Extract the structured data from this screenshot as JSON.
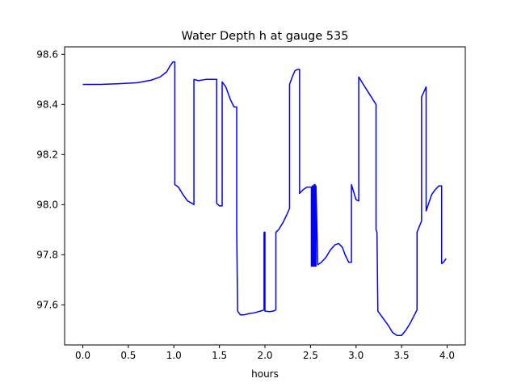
{
  "chart_data": {
    "type": "line",
    "title": "Water Depth h at gauge 535",
    "xlabel": "hours",
    "ylabel": "",
    "xlim": [
      -0.2,
      4.2
    ],
    "ylim": [
      97.44,
      98.63
    ],
    "xticks": [
      {
        "value": 0.0,
        "label": "0.0"
      },
      {
        "value": 0.5,
        "label": "0.5"
      },
      {
        "value": 1.0,
        "label": "1.0"
      },
      {
        "value": 1.5,
        "label": "1.5"
      },
      {
        "value": 2.0,
        "label": "2.0"
      },
      {
        "value": 2.5,
        "label": "2.5"
      },
      {
        "value": 3.0,
        "label": "3.0"
      },
      {
        "value": 3.5,
        "label": "3.5"
      },
      {
        "value": 4.0,
        "label": "4.0"
      }
    ],
    "yticks": [
      {
        "value": 97.6,
        "label": "97.6"
      },
      {
        "value": 97.8,
        "label": "97.8"
      },
      {
        "value": 98.0,
        "label": "98.0"
      },
      {
        "value": 98.2,
        "label": "98.2"
      },
      {
        "value": 98.4,
        "label": "98.4"
      },
      {
        "value": 98.6,
        "label": "98.6"
      }
    ],
    "grid": false,
    "series": [
      {
        "color": "#0000ff",
        "x": [
          0.0,
          0.2,
          0.4,
          0.6,
          0.75,
          0.85,
          0.92,
          0.96,
          0.99,
          1.01,
          1.01,
          1.05,
          1.1,
          1.15,
          1.2,
          1.22,
          1.22,
          1.27,
          1.35,
          1.44,
          1.47,
          1.47,
          1.5,
          1.53,
          1.53,
          1.57,
          1.62,
          1.66,
          1.69,
          1.69,
          1.7,
          1.73,
          1.77,
          1.82,
          1.88,
          1.95,
          1.99,
          1.99,
          2.0,
          2.0,
          2.05,
          2.09,
          2.12,
          2.12,
          2.15,
          2.2,
          2.24,
          2.27,
          2.27,
          2.3,
          2.33,
          2.36,
          2.38,
          2.38,
          2.42,
          2.46,
          2.5,
          2.51,
          2.51,
          2.52,
          2.52,
          2.53,
          2.53,
          2.54,
          2.54,
          2.55,
          2.55,
          2.56,
          2.56,
          2.58,
          2.62,
          2.67,
          2.72,
          2.77,
          2.81,
          2.85,
          2.88,
          2.92,
          2.95,
          2.95,
          3.0,
          3.03,
          3.03,
          3.08,
          3.15,
          3.22,
          3.22,
          3.23,
          3.24,
          3.3,
          3.36,
          3.4,
          3.45,
          3.5,
          3.55,
          3.6,
          3.67,
          3.67,
          3.72,
          3.72,
          3.77,
          3.77,
          3.83,
          3.87,
          3.91,
          3.94,
          3.94,
          3.96,
          3.99
        ],
        "y": [
          98.48,
          98.48,
          98.483,
          98.487,
          98.497,
          98.51,
          98.53,
          98.555,
          98.57,
          98.57,
          98.08,
          98.07,
          98.04,
          98.015,
          98.005,
          98.0,
          98.5,
          98.495,
          98.5,
          98.5,
          98.5,
          98.005,
          97.995,
          97.995,
          98.49,
          98.47,
          98.42,
          98.39,
          98.39,
          97.89,
          97.575,
          97.56,
          97.56,
          97.565,
          97.568,
          97.575,
          97.58,
          97.89,
          97.89,
          97.575,
          97.573,
          97.575,
          97.58,
          97.89,
          97.9,
          97.93,
          97.96,
          97.985,
          98.48,
          98.51,
          98.535,
          98.54,
          98.54,
          98.045,
          98.06,
          98.07,
          98.07,
          98.07,
          97.755,
          97.755,
          98.075,
          98.075,
          97.755,
          97.755,
          98.08,
          98.08,
          97.755,
          97.755,
          98.075,
          97.76,
          97.77,
          97.79,
          97.82,
          97.84,
          97.845,
          97.83,
          97.8,
          97.77,
          97.77,
          98.08,
          98.02,
          98.015,
          98.51,
          98.48,
          98.44,
          98.4,
          97.9,
          97.89,
          97.575,
          97.545,
          97.515,
          97.49,
          97.478,
          97.478,
          97.5,
          97.53,
          97.58,
          97.89,
          97.935,
          98.43,
          98.47,
          97.975,
          98.04,
          98.06,
          98.075,
          98.075,
          97.765,
          97.77,
          97.785
        ]
      }
    ]
  }
}
